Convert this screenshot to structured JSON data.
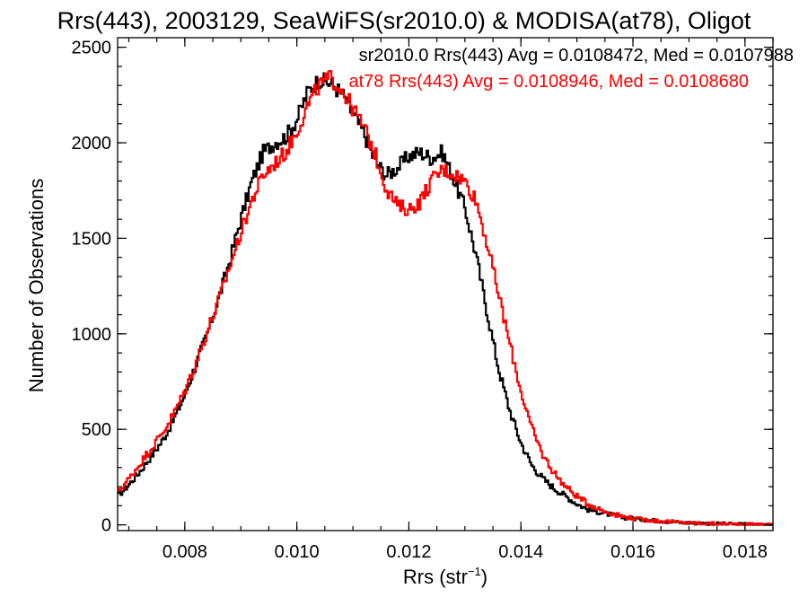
{
  "chart_data": {
    "type": "line",
    "title": "Rrs(443), 2003129, SeaWiFS(sr2010.0) & MODISA(at78), Oligot",
    "xlabel": "Rrs (str",
    "xlabel_sup": "−1",
    "xlabel_close": ")",
    "ylabel": "Number of Observations",
    "xlim": [
      0.0068,
      0.0185
    ],
    "ylim": [
      -30,
      2550
    ],
    "xticks": [
      0.008,
      0.01,
      0.012,
      0.014,
      0.016,
      0.018
    ],
    "xtick_labels": [
      "0.008",
      "0.010",
      "0.012",
      "0.014",
      "0.016",
      "0.018"
    ],
    "yticks": [
      0,
      500,
      1000,
      1500,
      2000,
      2500
    ],
    "ytick_labels": [
      "0",
      "500",
      "1000",
      "1500",
      "2000",
      "2500"
    ],
    "grid": false,
    "legend_position": "top-right",
    "series": [
      {
        "name": "sr2010.0",
        "legend": "sr2010.0 Rrs(443) Avg = 0.0108472, Med = 0.0107988",
        "color": "#000000",
        "x": [
          0.0068,
          0.007,
          0.0072,
          0.0074,
          0.0076,
          0.0078,
          0.008,
          0.0082,
          0.0084,
          0.0086,
          0.0088,
          0.009,
          0.0092,
          0.0094,
          0.0096,
          0.0098,
          0.01,
          0.0102,
          0.0104,
          0.0106,
          0.0108,
          0.011,
          0.0112,
          0.0114,
          0.0116,
          0.0118,
          0.012,
          0.0122,
          0.0124,
          0.0126,
          0.0128,
          0.013,
          0.0132,
          0.0134,
          0.0136,
          0.0138,
          0.014,
          0.0142,
          0.0144,
          0.0146,
          0.0148,
          0.015,
          0.0152,
          0.0155,
          0.0158,
          0.0161,
          0.0165,
          0.017,
          0.0175,
          0.018,
          0.0185
        ],
        "y": [
          150,
          210,
          280,
          360,
          440,
          550,
          680,
          840,
          1000,
          1180,
          1380,
          1600,
          1800,
          1950,
          2000,
          2030,
          2120,
          2270,
          2330,
          2310,
          2260,
          2150,
          2050,
          1900,
          1830,
          1870,
          1930,
          1950,
          1920,
          1950,
          1810,
          1660,
          1410,
          1110,
          820,
          600,
          430,
          310,
          240,
          190,
          150,
          110,
          80,
          60,
          40,
          30,
          20,
          10,
          6,
          3,
          2
        ]
      },
      {
        "name": "at78",
        "legend": "at78 Rrs(443) Avg = 0.0108946, Med = 0.0108680",
        "color": "#ff0000",
        "x": [
          0.0068,
          0.007,
          0.0072,
          0.0074,
          0.0076,
          0.0078,
          0.008,
          0.0082,
          0.0084,
          0.0086,
          0.0088,
          0.009,
          0.0092,
          0.0094,
          0.0096,
          0.0098,
          0.01,
          0.0102,
          0.0104,
          0.0106,
          0.0108,
          0.011,
          0.0112,
          0.0114,
          0.0116,
          0.0118,
          0.012,
          0.0122,
          0.0124,
          0.0126,
          0.0128,
          0.013,
          0.0132,
          0.0134,
          0.0136,
          0.0138,
          0.014,
          0.0142,
          0.0144,
          0.0146,
          0.0148,
          0.015,
          0.0152,
          0.0155,
          0.0158,
          0.0161,
          0.0165,
          0.017,
          0.0175,
          0.018,
          0.0185
        ],
        "y": [
          170,
          240,
          320,
          400,
          480,
          580,
          700,
          850,
          1010,
          1170,
          1350,
          1530,
          1700,
          1830,
          1890,
          1950,
          2060,
          2200,
          2300,
          2340,
          2280,
          2180,
          2080,
          1940,
          1760,
          1670,
          1650,
          1690,
          1800,
          1860,
          1840,
          1800,
          1700,
          1470,
          1210,
          950,
          700,
          500,
          360,
          270,
          200,
          150,
          110,
          70,
          45,
          30,
          20,
          10,
          6,
          3,
          2
        ]
      }
    ]
  }
}
